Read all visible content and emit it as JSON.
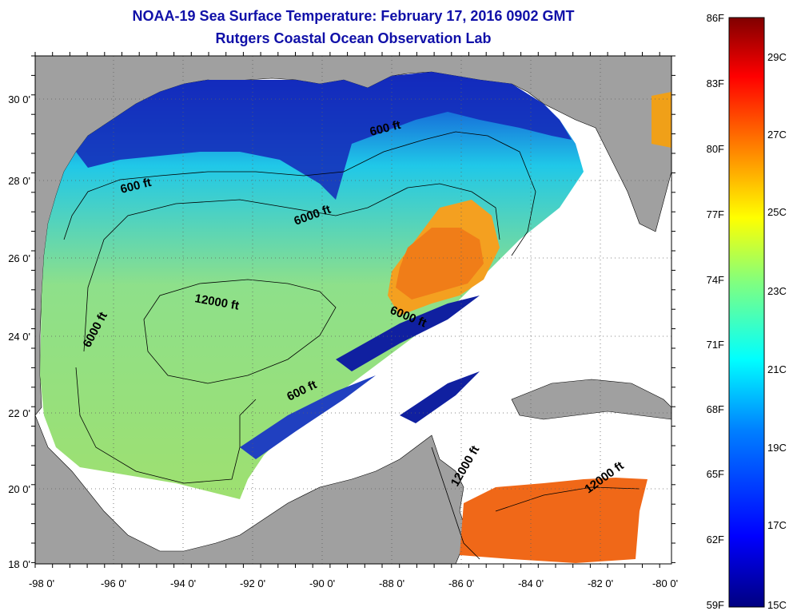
{
  "title": "NOAA-19 Sea Surface Temperature:  February 17, 2016 0902 GMT",
  "subtitle": "Rutgers Coastal Ocean Observation Lab",
  "map": {
    "lon_labels": [
      "-98 0'",
      "-96 0'",
      "-94 0'",
      "-92 0'",
      "-90 0'",
      "-88 0'",
      "-86 0'",
      "-84 0'",
      "-82 0'",
      "-80 0'"
    ],
    "lat_labels": [
      "30 0'",
      "28 0'",
      "26 0'",
      "24 0'",
      "22 0'",
      "20 0'",
      "18 0'"
    ],
    "contour_labels": [
      "600 ft",
      "600 ft",
      "6000 ft",
      "6000 ft",
      "6000 ft",
      "12000 ft",
      "600 ft",
      "12000 ft",
      "12000 ft"
    ]
  },
  "colorbar": {
    "f_labels": [
      "86F",
      "83F",
      "80F",
      "77F",
      "74F",
      "71F",
      "68F",
      "65F",
      "62F",
      "59F"
    ],
    "c_labels": [
      "29C",
      "27C",
      "25C",
      "23C",
      "21C",
      "19C",
      "17C",
      "15C"
    ],
    "colors": [
      "#800000",
      "#ff0000",
      "#ff8000",
      "#ffff00",
      "#80ff80",
      "#00ffff",
      "#0080ff",
      "#0000ff",
      "#000080"
    ]
  }
}
